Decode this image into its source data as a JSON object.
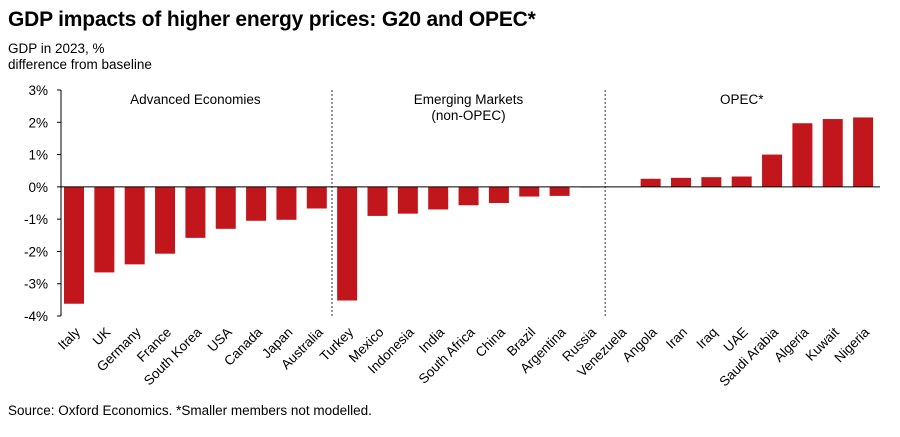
{
  "title": "GDP impacts of higher energy prices: G20 and OPEC*",
  "subtitle_line1": "GDP in 2023, %",
  "subtitle_line2": "difference from baseline",
  "source": "Source: Oxford Economics. *Smaller members not modelled.",
  "chart_data": {
    "type": "bar",
    "bar_color": "#c0161c",
    "ylim": [
      -4,
      3
    ],
    "yticks": [
      3,
      2,
      1,
      0,
      -1,
      -2,
      -3,
      -4
    ],
    "ytick_labels": [
      "3%",
      "2%",
      "1%",
      "0%",
      "-1%",
      "-2%",
      "-3%",
      "-4%"
    ],
    "categories": [
      "Italy",
      "UK",
      "Germany",
      "France",
      "South Korea",
      "USA",
      "Canada",
      "Japan",
      "Australia",
      "Turkey",
      "Mexico",
      "Indonesia",
      "India",
      "South Africa",
      "China",
      "Brazil",
      "Argentina",
      "Russia",
      "Venezuela",
      "Angola",
      "Iran",
      "Iraq",
      "UAE",
      "Saudi Arabia",
      "Algeria",
      "Kuwait",
      "Nigeria"
    ],
    "values": [
      -3.62,
      -2.65,
      -2.4,
      -2.07,
      -1.58,
      -1.3,
      -1.05,
      -1.02,
      -0.67,
      -3.52,
      -0.9,
      -0.83,
      -0.7,
      -0.57,
      -0.5,
      -0.3,
      -0.28,
      -0.02,
      0.0,
      0.25,
      0.28,
      0.3,
      0.32,
      1.0,
      1.97,
      2.1,
      2.15
    ],
    "groups": [
      {
        "label_lines": [
          "Advanced Economies"
        ],
        "start": 0,
        "end": 8
      },
      {
        "label_lines": [
          "Emerging Markets",
          "(non-OPEC)"
        ],
        "start": 9,
        "end": 17
      },
      {
        "label_lines": [
          "OPEC*"
        ],
        "start": 18,
        "end": 26
      }
    ]
  }
}
